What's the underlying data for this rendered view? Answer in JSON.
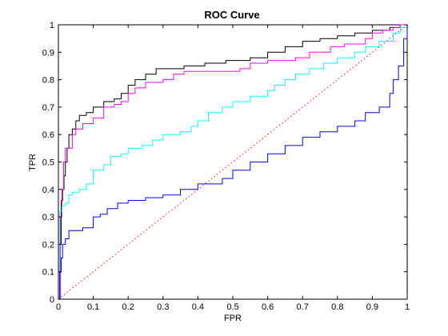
{
  "chart_data": {
    "type": "line",
    "title": "ROC Curve",
    "xlabel": "FPR",
    "ylabel": "TPR",
    "xlim": [
      0,
      1
    ],
    "ylim": [
      0,
      1
    ],
    "xticks": [
      "0",
      "0.1",
      "0.2",
      "0.3",
      "0.4",
      "0.5",
      "0.6",
      "0.7",
      "0.8",
      "0.9",
      "1"
    ],
    "yticks": [
      "0",
      "0.1",
      "0.2",
      "0.3",
      "0.4",
      "0.5",
      "0.6",
      "0.7",
      "0.8",
      "0.9",
      "1"
    ],
    "grid": false,
    "legend": null,
    "series": [
      {
        "color": "#000000",
        "style": "step",
        "points": [
          [
            0,
            0
          ],
          [
            0.004,
            0.2
          ],
          [
            0.008,
            0.36
          ],
          [
            0.012,
            0.4
          ],
          [
            0.016,
            0.45
          ],
          [
            0.02,
            0.5
          ],
          [
            0.025,
            0.55
          ],
          [
            0.03,
            0.6
          ],
          [
            0.04,
            0.62
          ],
          [
            0.05,
            0.65
          ],
          [
            0.06,
            0.67
          ],
          [
            0.08,
            0.68
          ],
          [
            0.1,
            0.7
          ],
          [
            0.13,
            0.72
          ],
          [
            0.16,
            0.73
          ],
          [
            0.18,
            0.75
          ],
          [
            0.2,
            0.78
          ],
          [
            0.22,
            0.8
          ],
          [
            0.25,
            0.82
          ],
          [
            0.28,
            0.84
          ],
          [
            0.33,
            0.84
          ],
          [
            0.36,
            0.85
          ],
          [
            0.42,
            0.86
          ],
          [
            0.48,
            0.87
          ],
          [
            0.55,
            0.88
          ],
          [
            0.6,
            0.9
          ],
          [
            0.65,
            0.92
          ],
          [
            0.7,
            0.94
          ],
          [
            0.75,
            0.95
          ],
          [
            0.8,
            0.96
          ],
          [
            0.85,
            0.97
          ],
          [
            0.9,
            0.98
          ],
          [
            0.95,
            0.99
          ],
          [
            0.98,
            1.0
          ],
          [
            1.0,
            1.0
          ]
        ]
      },
      {
        "color": "#ff00ff",
        "style": "step",
        "points": [
          [
            0,
            0
          ],
          [
            0.006,
            0.3
          ],
          [
            0.01,
            0.4
          ],
          [
            0.015,
            0.5
          ],
          [
            0.02,
            0.55
          ],
          [
            0.03,
            0.55
          ],
          [
            0.04,
            0.6
          ],
          [
            0.05,
            0.62
          ],
          [
            0.07,
            0.64
          ],
          [
            0.1,
            0.66
          ],
          [
            0.13,
            0.7
          ],
          [
            0.16,
            0.71
          ],
          [
            0.18,
            0.72
          ],
          [
            0.2,
            0.75
          ],
          [
            0.22,
            0.77
          ],
          [
            0.25,
            0.79
          ],
          [
            0.3,
            0.8
          ],
          [
            0.33,
            0.82
          ],
          [
            0.36,
            0.83
          ],
          [
            0.48,
            0.83
          ],
          [
            0.52,
            0.84
          ],
          [
            0.55,
            0.86
          ],
          [
            0.6,
            0.87
          ],
          [
            0.68,
            0.88
          ],
          [
            0.72,
            0.9
          ],
          [
            0.78,
            0.92
          ],
          [
            0.82,
            0.93
          ],
          [
            0.88,
            0.95
          ],
          [
            0.9,
            0.97
          ],
          [
            0.93,
            0.98
          ],
          [
            0.96,
            0.99
          ],
          [
            0.98,
            1.0
          ],
          [
            1.0,
            1.0
          ]
        ]
      },
      {
        "color": "#00ffff",
        "style": "step",
        "points": [
          [
            0,
            0
          ],
          [
            0.004,
            0.32
          ],
          [
            0.01,
            0.34
          ],
          [
            0.02,
            0.35
          ],
          [
            0.03,
            0.38
          ],
          [
            0.04,
            0.39
          ],
          [
            0.06,
            0.4
          ],
          [
            0.08,
            0.42
          ],
          [
            0.1,
            0.47
          ],
          [
            0.13,
            0.49
          ],
          [
            0.15,
            0.52
          ],
          [
            0.18,
            0.53
          ],
          [
            0.2,
            0.55
          ],
          [
            0.24,
            0.56
          ],
          [
            0.27,
            0.58
          ],
          [
            0.3,
            0.6
          ],
          [
            0.35,
            0.61
          ],
          [
            0.38,
            0.63
          ],
          [
            0.4,
            0.65
          ],
          [
            0.43,
            0.68
          ],
          [
            0.47,
            0.7
          ],
          [
            0.5,
            0.72
          ],
          [
            0.55,
            0.74
          ],
          [
            0.6,
            0.76
          ],
          [
            0.62,
            0.78
          ],
          [
            0.65,
            0.8
          ],
          [
            0.68,
            0.82
          ],
          [
            0.72,
            0.84
          ],
          [
            0.76,
            0.86
          ],
          [
            0.8,
            0.88
          ],
          [
            0.85,
            0.9
          ],
          [
            0.88,
            0.92
          ],
          [
            0.92,
            0.94
          ],
          [
            0.96,
            0.97
          ],
          [
            0.98,
            0.99
          ],
          [
            1.0,
            1.0
          ]
        ]
      },
      {
        "color": "#0000ff",
        "style": "step",
        "points": [
          [
            0,
            0
          ],
          [
            0.004,
            0.1
          ],
          [
            0.008,
            0.15
          ],
          [
            0.012,
            0.2
          ],
          [
            0.02,
            0.22
          ],
          [
            0.03,
            0.25
          ],
          [
            0.07,
            0.26
          ],
          [
            0.1,
            0.3
          ],
          [
            0.12,
            0.31
          ],
          [
            0.14,
            0.33
          ],
          [
            0.17,
            0.35
          ],
          [
            0.2,
            0.36
          ],
          [
            0.25,
            0.37
          ],
          [
            0.3,
            0.38
          ],
          [
            0.35,
            0.4
          ],
          [
            0.4,
            0.42
          ],
          [
            0.47,
            0.44
          ],
          [
            0.5,
            0.47
          ],
          [
            0.55,
            0.5
          ],
          [
            0.6,
            0.53
          ],
          [
            0.65,
            0.56
          ],
          [
            0.7,
            0.59
          ],
          [
            0.75,
            0.61
          ],
          [
            0.8,
            0.63
          ],
          [
            0.85,
            0.65
          ],
          [
            0.88,
            0.68
          ],
          [
            0.92,
            0.7
          ],
          [
            0.95,
            0.75
          ],
          [
            0.96,
            0.8
          ],
          [
            0.975,
            0.85
          ],
          [
            0.99,
            0.95
          ],
          [
            1.0,
            1.0
          ]
        ]
      },
      {
        "color": "#ff0000",
        "style": "dotted",
        "points": [
          [
            0,
            0
          ],
          [
            1,
            1
          ]
        ]
      }
    ]
  }
}
